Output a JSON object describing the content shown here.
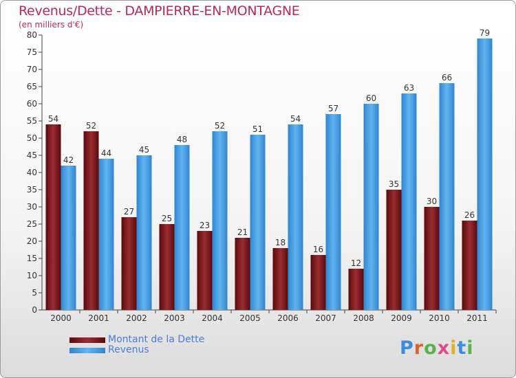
{
  "header": {
    "title": "Revenus/Dette - DAMPIERRE-EN-MONTAGNE",
    "subtitle": "(en milliers d'€)"
  },
  "logo": {
    "text": "Proxiti"
  },
  "colors": {
    "debt": "#7a1a1e",
    "revenue": "#4aa0e4"
  },
  "chart_data": {
    "type": "bar",
    "categories": [
      "2000",
      "2001",
      "2002",
      "2003",
      "2004",
      "2005",
      "2006",
      "2007",
      "2008",
      "2009",
      "2010",
      "2011"
    ],
    "series": [
      {
        "name": "Montant de la Dette",
        "values": [
          54,
          52,
          27,
          25,
          23,
          21,
          18,
          16,
          12,
          35,
          30,
          26
        ]
      },
      {
        "name": "Revenus",
        "values": [
          42,
          44,
          45,
          48,
          52,
          51,
          54,
          57,
          60,
          63,
          66,
          79
        ]
      }
    ],
    "ylim": [
      0,
      80
    ],
    "yticks": [
      0,
      5,
      10,
      15,
      20,
      25,
      30,
      35,
      40,
      45,
      50,
      55,
      60,
      65,
      70,
      75,
      80
    ],
    "grid": false,
    "legend": "bottom-left"
  }
}
